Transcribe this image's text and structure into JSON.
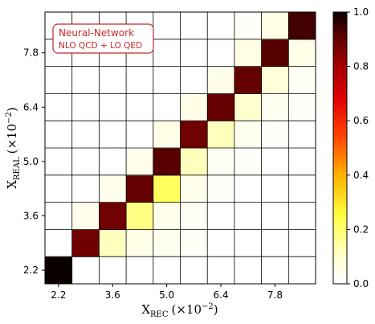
{
  "chart_data": {
    "type": "heatmap",
    "x_axis": {
      "label_main": "X",
      "label_sub": "REC",
      "label_unit": "(×10",
      "label_exp": "−2",
      "label_close": ")",
      "tick_labels": [
        "2.2",
        "3.6",
        "5.0",
        "6.4",
        "7.8"
      ],
      "tick_bins": [
        0,
        2,
        4,
        6,
        8
      ]
    },
    "y_axis": {
      "label_main": "X",
      "label_sub": "REAL",
      "label_unit": "(×10",
      "label_exp": "−2",
      "label_close": ")",
      "tick_labels": [
        "2.2",
        "3.6",
        "5.0",
        "6.4",
        "7.8"
      ],
      "tick_bins": [
        0,
        2,
        4,
        6,
        8
      ]
    },
    "bins": 10,
    "note": "matrix rows are REAL bins from bottom (index 0) to top (index 9); columns are REC bins from left to right",
    "matrix": [
      [
        1.0,
        0.0,
        0.0,
        0.0,
        0.0,
        0.0,
        0.0,
        0.0,
        0.0,
        0.0
      ],
      [
        0.0,
        0.88,
        0.12,
        0.05,
        0.03,
        0.02,
        0.0,
        0.0,
        0.0,
        0.0
      ],
      [
        0.0,
        0.04,
        0.88,
        0.18,
        0.04,
        0.02,
        0.0,
        0.0,
        0.0,
        0.0
      ],
      [
        0.0,
        0.0,
        0.04,
        0.9,
        0.22,
        0.04,
        0.01,
        0.0,
        0.0,
        0.0
      ],
      [
        0.0,
        0.0,
        0.0,
        0.04,
        0.92,
        0.12,
        0.02,
        0.01,
        0.0,
        0.0
      ],
      [
        0.0,
        0.0,
        0.0,
        0.0,
        0.05,
        0.88,
        0.12,
        0.03,
        0.01,
        0.0
      ],
      [
        0.0,
        0.0,
        0.0,
        0.0,
        0.0,
        0.05,
        0.9,
        0.1,
        0.03,
        0.01
      ],
      [
        0.0,
        0.0,
        0.0,
        0.0,
        0.0,
        0.0,
        0.05,
        0.9,
        0.08,
        0.02
      ],
      [
        0.0,
        0.0,
        0.0,
        0.0,
        0.0,
        0.0,
        0.0,
        0.06,
        0.92,
        0.05
      ],
      [
        0.0,
        0.0,
        0.0,
        0.0,
        0.0,
        0.0,
        0.0,
        0.01,
        0.06,
        0.94
      ]
    ],
    "colorbar": {
      "range": [
        0.0,
        1.0
      ],
      "tick_values": [
        0.0,
        0.2,
        0.4,
        0.6,
        0.8,
        1.0
      ],
      "tick_labels": [
        "0.0",
        "0.2",
        "0.4",
        "0.6",
        "0.8",
        "1.0"
      ],
      "colormap": "hot_r"
    },
    "grid": true,
    "legend": {
      "placement": "top-left",
      "line1": "Neural-Network",
      "line2": "NLO QCD + LO QED",
      "color": "#c62828"
    }
  }
}
